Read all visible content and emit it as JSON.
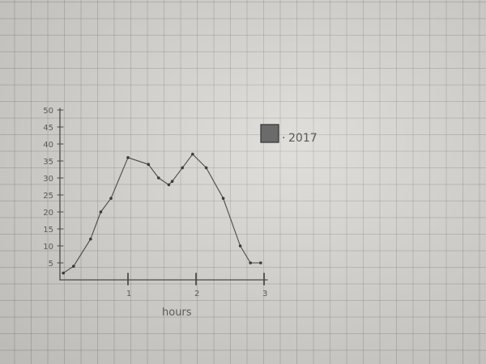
{
  "chart_data": {
    "type": "line",
    "title": "",
    "xlabel": "hours",
    "ylabel": "",
    "x_ticks": [
      "1",
      "2",
      "3"
    ],
    "y_ticks": [
      "5",
      "10",
      "15",
      "20",
      "25",
      "30",
      "35",
      "40",
      "45",
      "50"
    ],
    "xlim": [
      0,
      3
    ],
    "ylim": [
      0,
      50
    ],
    "grid": true,
    "legend_position": "top-right",
    "series": [
      {
        "name": "2017",
        "x": [
          0.05,
          0.2,
          0.45,
          0.6,
          0.75,
          1.0,
          1.3,
          1.45,
          1.6,
          1.65,
          1.8,
          1.95,
          2.15,
          2.4,
          2.65,
          2.8,
          2.95
        ],
        "y": [
          2,
          4,
          12,
          20,
          24,
          36,
          34,
          30,
          28,
          29,
          33,
          37,
          33,
          24,
          10,
          5,
          5
        ]
      }
    ]
  }
}
